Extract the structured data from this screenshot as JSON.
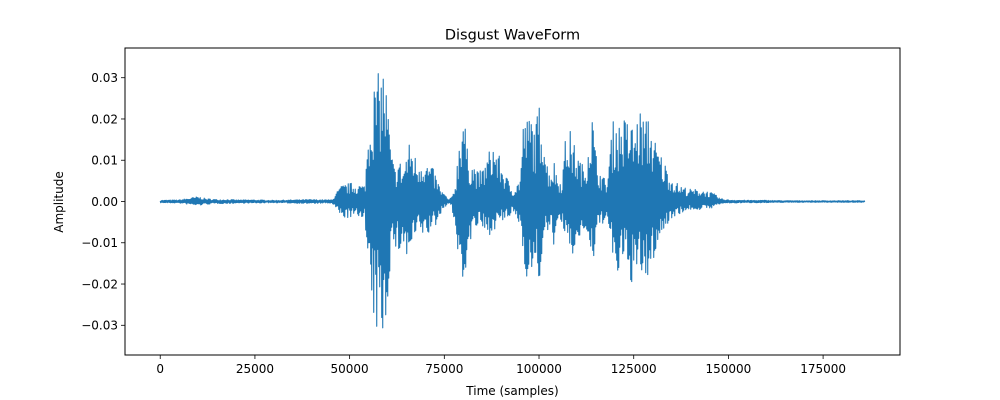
{
  "chart_data": {
    "type": "line",
    "title": "Disgust WaveForm",
    "xlabel": "Time (samples)",
    "ylabel": "Amplitude",
    "xlim": [
      -9300,
      195300
    ],
    "ylim": [
      -0.0372,
      0.0372
    ],
    "x_ticks": [
      0,
      25000,
      50000,
      75000,
      100000,
      125000,
      150000,
      175000
    ],
    "x_tick_labels": [
      "0",
      "25000",
      "50000",
      "75000",
      "100000",
      "125000",
      "150000",
      "175000"
    ],
    "y_ticks": [
      -0.03,
      -0.02,
      -0.01,
      0.0,
      0.01,
      0.02,
      0.03
    ],
    "y_tick_labels": [
      "−0.03",
      "−0.02",
      "−0.01",
      "0.00",
      "0.01",
      "0.02",
      "0.03"
    ],
    "grid": false,
    "line_color": "#1f77b4",
    "series": [
      {
        "x": [
          0,
          5000,
          10000,
          12000,
          15000,
          18000,
          20000,
          25000,
          30000,
          35000,
          40000,
          45000,
          46000,
          47000,
          48000,
          50000,
          52000,
          54000,
          55000,
          56000,
          57000,
          58000,
          59000,
          60000,
          61000,
          62000,
          63000,
          64000,
          65000,
          66000,
          67000,
          68000,
          69000,
          70000,
          71000,
          72000,
          73000,
          74000,
          75000,
          76000,
          77000,
          78000,
          79000,
          80000,
          81000,
          82000,
          83000,
          84000,
          85000,
          86000,
          87000,
          88000,
          89000,
          90000,
          91000,
          92000,
          93000,
          94000,
          95000,
          96000,
          97000,
          98000,
          99000,
          100000,
          101000,
          102000,
          103000,
          104000,
          105000,
          106000,
          107000,
          108000,
          109000,
          110000,
          111000,
          112000,
          113000,
          114000,
          115000,
          116000,
          117000,
          118000,
          119000,
          120000,
          121000,
          122000,
          123000,
          124000,
          125000,
          126000,
          127000,
          128000,
          129000,
          130000,
          131000,
          132000,
          133000,
          134000,
          135000,
          137000,
          140000,
          143000,
          146000,
          148000,
          150000,
          155000,
          160000,
          165000,
          170000,
          175000,
          180000,
          186000
        ],
        "max": [
          0.0003,
          0.0004,
          0.0012,
          0.0007,
          0.0005,
          0.0005,
          0.0004,
          0.0004,
          0.0003,
          0.0004,
          0.0005,
          0.0004,
          0.0012,
          0.003,
          0.004,
          0.0045,
          0.0045,
          0.004,
          0.02,
          0.028,
          0.03,
          0.032,
          0.034,
          0.025,
          0.012,
          0.008,
          0.011,
          0.008,
          0.012,
          0.015,
          0.012,
          0.01,
          0.012,
          0.01,
          0.009,
          0.008,
          0.006,
          0.003,
          0.002,
          0.0005,
          0.001,
          0.005,
          0.017,
          0.025,
          0.013,
          0.01,
          0.009,
          0.007,
          0.008,
          0.01,
          0.013,
          0.015,
          0.012,
          0.01,
          0.007,
          0.005,
          0.003,
          0.004,
          0.006,
          0.022,
          0.02,
          0.022,
          0.018,
          0.024,
          0.023,
          0.01,
          0.008,
          0.01,
          0.006,
          0.005,
          0.016,
          0.018,
          0.015,
          0.012,
          0.01,
          0.008,
          0.016,
          0.023,
          0.012,
          0.008,
          0.006,
          0.005,
          0.016,
          0.022,
          0.019,
          0.021,
          0.02,
          0.02,
          0.018,
          0.021,
          0.023,
          0.019,
          0.022,
          0.017,
          0.014,
          0.012,
          0.01,
          0.008,
          0.006,
          0.004,
          0.003,
          0.003,
          0.002,
          0.0007,
          0.0004,
          0.0003,
          0.0003,
          0.0002,
          0.0002,
          0.0002,
          0.0002,
          0.0002
        ],
        "min": [
          -0.0003,
          -0.0004,
          -0.001,
          -0.0007,
          -0.0005,
          -0.0005,
          -0.0004,
          -0.0004,
          -0.0003,
          -0.0004,
          -0.0005,
          -0.0004,
          -0.001,
          -0.003,
          -0.004,
          -0.004,
          -0.004,
          -0.0035,
          -0.023,
          -0.029,
          -0.032,
          -0.033,
          -0.034,
          -0.026,
          -0.011,
          -0.012,
          -0.013,
          -0.01,
          -0.015,
          -0.013,
          -0.01,
          -0.008,
          -0.008,
          -0.009,
          -0.008,
          -0.006,
          -0.006,
          -0.003,
          -0.0015,
          -0.0005,
          -0.001,
          -0.009,
          -0.016,
          -0.025,
          -0.012,
          -0.01,
          -0.007,
          -0.006,
          -0.007,
          -0.009,
          -0.008,
          -0.007,
          -0.006,
          -0.005,
          -0.005,
          -0.004,
          -0.003,
          -0.004,
          -0.006,
          -0.014,
          -0.02,
          -0.019,
          -0.017,
          -0.02,
          -0.014,
          -0.008,
          -0.007,
          -0.011,
          -0.007,
          -0.005,
          -0.011,
          -0.015,
          -0.013,
          -0.013,
          -0.008,
          -0.007,
          -0.011,
          -0.018,
          -0.01,
          -0.007,
          -0.005,
          -0.004,
          -0.012,
          -0.02,
          -0.018,
          -0.016,
          -0.018,
          -0.019,
          -0.021,
          -0.02,
          -0.018,
          -0.023,
          -0.018,
          -0.015,
          -0.012,
          -0.009,
          -0.007,
          -0.006,
          -0.004,
          -0.003,
          -0.002,
          -0.002,
          -0.0015,
          -0.0005,
          -0.0004,
          -0.0003,
          -0.0003,
          -0.0002,
          -0.0002,
          -0.0002,
          -0.0002,
          -0.0002
        ]
      }
    ]
  }
}
